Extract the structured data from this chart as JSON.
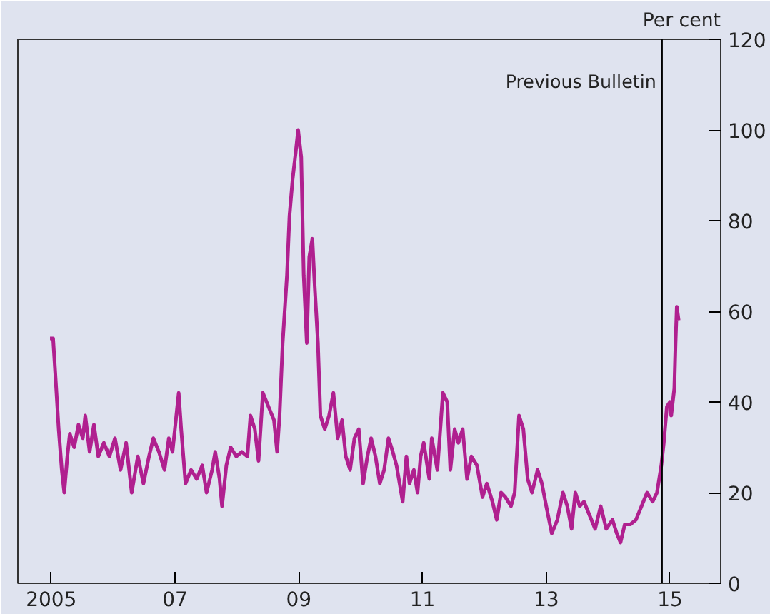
{
  "chart_data": {
    "type": "line",
    "ylabel": "Per cent",
    "x": [
      2004.98,
      2005.03,
      2005.08,
      2005.12,
      2005.17,
      2005.21,
      2005.26,
      2005.3,
      2005.37,
      2005.44,
      2005.51,
      2005.55,
      2005.62,
      2005.69,
      2005.76,
      2005.85,
      2005.94,
      2006.03,
      2006.12,
      2006.21,
      2006.3,
      2006.4,
      2006.49,
      2006.58,
      2006.65,
      2006.74,
      2006.83,
      2006.9,
      2006.96,
      2007.06,
      2007.1,
      2007.17,
      2007.26,
      2007.35,
      2007.44,
      2007.51,
      2007.6,
      2007.65,
      2007.72,
      2007.76,
      2007.83,
      2007.9,
      2007.99,
      2008.08,
      2008.17,
      2008.22,
      2008.29,
      2008.35,
      2008.42,
      2008.51,
      2008.6,
      2008.65,
      2008.69,
      2008.74,
      2008.81,
      2008.85,
      2008.9,
      2008.95,
      2008.99,
      2009.04,
      2009.08,
      2009.13,
      2009.17,
      2009.22,
      2009.26,
      2009.31,
      2009.35,
      2009.42,
      2009.49,
      2009.56,
      2009.63,
      2009.7,
      2009.76,
      2009.83,
      2009.9,
      2009.97,
      2010.04,
      2010.11,
      2010.17,
      2010.24,
      2010.31,
      2010.38,
      2010.45,
      2010.52,
      2010.58,
      2010.68,
      2010.74,
      2010.79,
      2010.86,
      2010.92,
      2010.97,
      2011.02,
      2011.11,
      2011.15,
      2011.24,
      2011.33,
      2011.4,
      2011.45,
      2011.52,
      2011.58,
      2011.65,
      2011.72,
      2011.79,
      2011.88,
      2011.97,
      2012.04,
      2012.13,
      2012.2,
      2012.27,
      2012.34,
      2012.43,
      2012.49,
      2012.56,
      2012.63,
      2012.7,
      2012.77,
      2012.86,
      2012.93,
      2013.0,
      2013.09,
      2013.18,
      2013.27,
      2013.34,
      2013.41,
      2013.47,
      2013.54,
      2013.61,
      2013.7,
      2013.79,
      2013.88,
      2013.97,
      2014.07,
      2014.14,
      2014.2,
      2014.27,
      2014.36,
      2014.45,
      2014.54,
      2014.63,
      2014.72,
      2014.79,
      2014.86,
      2014.9,
      2014.95,
      2015.0,
      2015.02,
      2015.07,
      2015.09,
      2015.11,
      2015.14
    ],
    "series": [
      {
        "color": "#b0208f",
        "values": [
          54,
          54,
          43,
          34,
          25,
          20,
          28,
          33,
          30,
          35,
          32,
          37,
          29,
          35,
          28,
          31,
          28,
          32,
          25,
          31,
          20,
          28,
          22,
          28,
          32,
          29,
          25,
          32,
          29,
          42,
          34,
          22,
          25,
          23,
          26,
          20,
          25,
          29,
          23,
          17,
          26,
          30,
          28,
          29,
          28,
          37,
          34,
          27,
          42,
          39,
          36,
          29,
          37,
          53,
          68,
          81,
          89,
          95,
          100,
          94,
          68,
          53,
          72,
          76,
          65,
          53,
          37,
          34,
          37,
          42,
          32,
          36,
          28,
          25,
          32,
          34,
          22,
          28,
          32,
          28,
          22,
          25,
          32,
          29,
          26,
          18,
          28,
          22,
          25,
          20,
          28,
          31,
          23,
          32,
          25,
          42,
          40,
          25,
          34,
          31,
          34,
          23,
          28,
          26,
          19,
          22,
          18,
          14,
          20,
          19,
          17,
          20,
          37,
          34,
          23,
          20,
          25,
          22,
          17,
          11,
          14,
          20,
          17,
          12,
          20,
          17,
          18,
          15,
          12,
          17,
          12,
          14,
          11,
          9,
          13,
          13,
          14,
          17,
          20,
          18,
          20,
          26,
          31,
          39,
          40,
          37,
          43,
          53,
          61,
          58
        ]
      }
    ],
    "xlim": [
      2004.46,
      2015.82
    ],
    "xticks": [
      2005,
      {
        "value": 2007,
        "label": "07"
      },
      {
        "value": 2009,
        "label": "09"
      },
      {
        "value": 2011,
        "label": "11"
      },
      {
        "value": 2013,
        "label": "13"
      },
      {
        "value": 2015,
        "label": "15"
      }
    ],
    "ylim": [
      0,
      120
    ],
    "yticks": [
      0,
      20,
      40,
      60,
      80,
      100,
      120
    ],
    "ref_lines": [
      {
        "axis": "x",
        "value": 2014.87,
        "label": "Previous Bulletin",
        "color": "#000000"
      }
    ],
    "grid": false
  }
}
